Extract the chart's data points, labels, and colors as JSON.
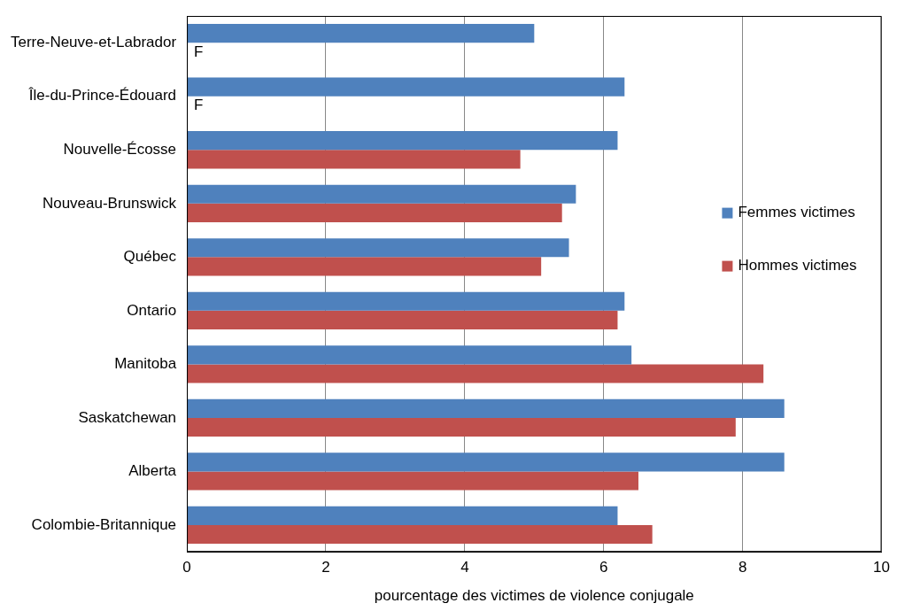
{
  "chart_data": {
    "type": "bar",
    "orientation": "horizontal",
    "xlabel": "pourcentage des victimes de violence conjugale",
    "categories": [
      "Terre-Neuve-et-Labrador",
      "Île-du-Prince-Édouard",
      "Nouvelle-Écosse",
      "Nouveau-Brunswick",
      "Québec",
      "Ontario",
      "Manitoba",
      "Saskatchewan",
      "Alberta",
      "Colombie-Britannique"
    ],
    "series": [
      {
        "name": "Femmes victimes",
        "color": "#4f81bd",
        "values": [
          5.0,
          6.3,
          6.2,
          5.6,
          5.5,
          6.3,
          6.4,
          8.6,
          8.6,
          6.2
        ]
      },
      {
        "name": "Hommes victimes",
        "color": "#c0504d",
        "values": [
          null,
          null,
          4.8,
          5.4,
          5.1,
          6.2,
          8.3,
          7.9,
          6.5,
          6.7
        ]
      }
    ],
    "xlim": [
      0,
      10
    ],
    "xticks": [
      0,
      2,
      4,
      6,
      8,
      10
    ],
    "grid": "x",
    "legend": "right",
    "annotations": [
      {
        "text": "F",
        "x": 0,
        "y": "Terre-Neuve-et-Labrador"
      },
      {
        "text": "F",
        "x": 0,
        "y": "Île-du-Prince-Édouard"
      }
    ]
  }
}
